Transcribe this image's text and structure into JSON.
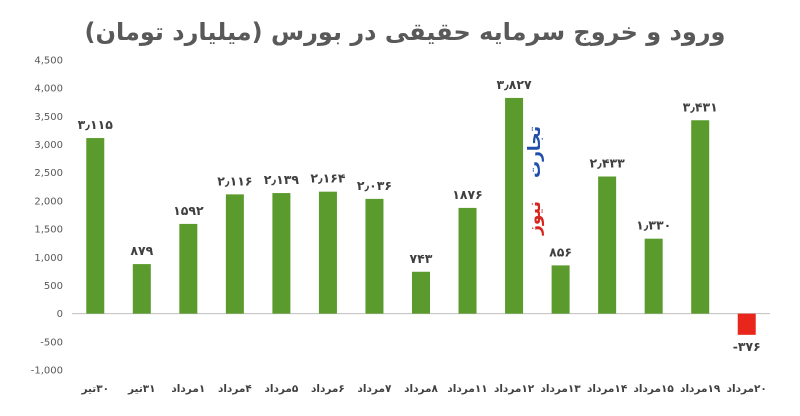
{
  "chart_data": {
    "type": "bar",
    "title": "ورود و خروج سرمایه حقیقی در بورس (میلیارد تومان)",
    "categories": [
      "۳۰تیر",
      "۳۱تیر",
      "۱مرداد",
      "۴مرداد",
      "۵مرداد",
      "۶مرداد",
      "۷مرداد",
      "۸مرداد",
      "۱۱مرداد",
      "۱۲مرداد",
      "۱۳مرداد",
      "۱۴مرداد",
      "۱۵مرداد",
      "۱۹مرداد",
      "۲۰مرداد"
    ],
    "values": [
      3115,
      879,
      1592,
      2116,
      2139,
      2164,
      2036,
      743,
      1876,
      3827,
      856,
      2433,
      1330,
      3431,
      -376
    ],
    "data_labels": [
      "۳٫۱۱۵",
      "۸۷۹",
      "۱۵۹۲",
      "۲٫۱۱۶",
      "۲٫۱۳۹",
      "۲٫۱۶۴",
      "۲٫۰۳۶",
      "۷۴۳",
      "۱۸۷۶",
      "۳٫۸۲۷",
      "۸۵۶",
      "۲٫۴۳۳",
      "۱٫۳۳۰",
      "۳٫۴۳۱",
      "-۳۷۶"
    ],
    "ylim": [
      -1000,
      4500
    ],
    "yticks": [
      -1000,
      -500,
      0,
      500,
      1000,
      1500,
      2000,
      2500,
      3000,
      3500,
      4000,
      4500
    ],
    "ytick_labels": [
      "-1,000",
      "-500",
      "0",
      "500",
      "1,000",
      "1,500",
      "2,000",
      "2,500",
      "3,000",
      "3,500",
      "4,000",
      "4,500"
    ],
    "xlabel": "",
    "ylabel": "",
    "grid": false,
    "colors": {
      "positive": "#5b9a2c",
      "negative": "#e8261b",
      "axis": "#bfbfbf",
      "text": "#404040"
    }
  },
  "watermark": {
    "line1": "تجارت",
    "line2": "نیوز",
    "color1": "#1f4fa8",
    "color2": "#d7261e"
  }
}
